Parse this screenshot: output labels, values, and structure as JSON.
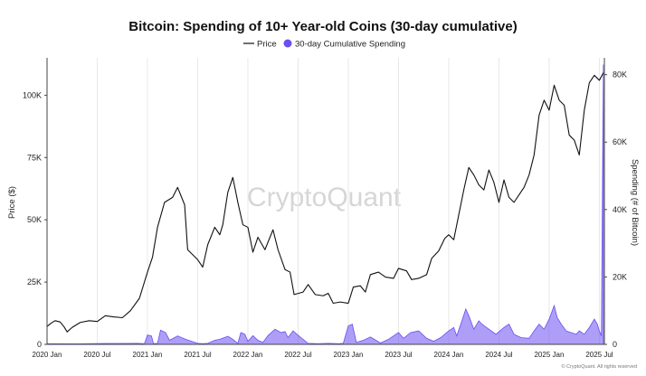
{
  "chart_data": {
    "type": "line",
    "title": "Bitcoin: Spending of 10+ Year-old Coins (30-day cumulative)",
    "legend": {
      "placement": "top-center",
      "entries": [
        {
          "label": "Price",
          "symbol": "line",
          "color": "#111111"
        },
        {
          "label": "30-day Cumulative Spending",
          "symbol": "circle",
          "color": "#6b4ff0"
        }
      ]
    },
    "watermark": "CryptoQuant",
    "footer": "© CryptoQuant. All rights reserved",
    "ylabel_left": "Price ($)",
    "ylabel_right": "Spending (# of Bitcoin)",
    "ylim_left": [
      0,
      115000
    ],
    "ylim_right": [
      0,
      85000
    ],
    "y_ticks_left": [
      "0",
      "25K",
      "50K",
      "75K",
      "100K"
    ],
    "y_ticks_left_values": [
      0,
      25000,
      50000,
      75000,
      100000
    ],
    "y_ticks_right": [
      "0",
      "20K",
      "40K",
      "60K",
      "80K"
    ],
    "y_ticks_right_values": [
      0,
      20000,
      40000,
      60000,
      80000
    ],
    "x_ticks": [
      "2020 Jan",
      "2020 Jul",
      "2021 Jan",
      "2021 Jul",
      "2022 Jan",
      "2022 Jul",
      "2023 Jan",
      "2023 Jul",
      "2024 Jan",
      "2024 Jul",
      "2025 Jan",
      "2025 Jul"
    ],
    "x_tick_values": [
      2020.0,
      2020.5,
      2021.0,
      2021.5,
      2022.0,
      2022.5,
      2023.0,
      2023.5,
      2024.0,
      2024.5,
      2025.0,
      2025.5
    ],
    "xlim": [
      2020.0,
      2025.55
    ],
    "grid": "x-vertical",
    "series": [
      {
        "name": "Price",
        "axis": "left",
        "type": "line",
        "color": "#111111",
        "points": [
          [
            2020.0,
            7200
          ],
          [
            2020.04,
            8500
          ],
          [
            2020.08,
            9500
          ],
          [
            2020.13,
            9000
          ],
          [
            2020.17,
            7000
          ],
          [
            2020.2,
            5000
          ],
          [
            2020.25,
            6800
          ],
          [
            2020.33,
            8800
          ],
          [
            2020.42,
            9500
          ],
          [
            2020.5,
            9200
          ],
          [
            2020.58,
            11500
          ],
          [
            2020.67,
            11000
          ],
          [
            2020.75,
            10700
          ],
          [
            2020.83,
            13500
          ],
          [
            2020.92,
            18500
          ],
          [
            2021.0,
            29000
          ],
          [
            2021.05,
            35000
          ],
          [
            2021.1,
            47000
          ],
          [
            2021.17,
            57000
          ],
          [
            2021.25,
            59000
          ],
          [
            2021.3,
            63000
          ],
          [
            2021.37,
            56000
          ],
          [
            2021.4,
            38000
          ],
          [
            2021.45,
            36000
          ],
          [
            2021.5,
            34000
          ],
          [
            2021.55,
            31000
          ],
          [
            2021.6,
            40000
          ],
          [
            2021.67,
            47000
          ],
          [
            2021.72,
            44000
          ],
          [
            2021.75,
            48000
          ],
          [
            2021.8,
            61000
          ],
          [
            2021.85,
            67000
          ],
          [
            2021.9,
            57000
          ],
          [
            2021.95,
            48000
          ],
          [
            2022.0,
            47000
          ],
          [
            2022.05,
            37000
          ],
          [
            2022.1,
            43000
          ],
          [
            2022.17,
            38000
          ],
          [
            2022.25,
            46000
          ],
          [
            2022.3,
            38000
          ],
          [
            2022.37,
            30000
          ],
          [
            2022.42,
            29000
          ],
          [
            2022.46,
            20000
          ],
          [
            2022.55,
            21000
          ],
          [
            2022.6,
            24000
          ],
          [
            2022.67,
            20000
          ],
          [
            2022.75,
            19500
          ],
          [
            2022.8,
            20500
          ],
          [
            2022.85,
            16500
          ],
          [
            2022.92,
            17000
          ],
          [
            2023.0,
            16500
          ],
          [
            2023.05,
            23000
          ],
          [
            2023.12,
            23500
          ],
          [
            2023.17,
            21000
          ],
          [
            2023.22,
            28000
          ],
          [
            2023.3,
            29000
          ],
          [
            2023.37,
            27000
          ],
          [
            2023.45,
            26500
          ],
          [
            2023.5,
            30500
          ],
          [
            2023.58,
            29500
          ],
          [
            2023.63,
            26000
          ],
          [
            2023.7,
            26500
          ],
          [
            2023.78,
            28000
          ],
          [
            2023.83,
            34500
          ],
          [
            2023.9,
            37500
          ],
          [
            2023.96,
            42500
          ],
          [
            2024.0,
            44000
          ],
          [
            2024.05,
            42000
          ],
          [
            2024.1,
            52000
          ],
          [
            2024.15,
            62000
          ],
          [
            2024.2,
            71000
          ],
          [
            2024.25,
            68000
          ],
          [
            2024.3,
            64000
          ],
          [
            2024.35,
            62000
          ],
          [
            2024.4,
            70000
          ],
          [
            2024.45,
            65000
          ],
          [
            2024.5,
            57000
          ],
          [
            2024.55,
            66000
          ],
          [
            2024.6,
            59000
          ],
          [
            2024.65,
            57000
          ],
          [
            2024.7,
            60000
          ],
          [
            2024.75,
            63000
          ],
          [
            2024.8,
            68000
          ],
          [
            2024.85,
            76000
          ],
          [
            2024.9,
            92000
          ],
          [
            2024.95,
            98000
          ],
          [
            2025.0,
            94000
          ],
          [
            2025.05,
            104000
          ],
          [
            2025.1,
            98000
          ],
          [
            2025.15,
            96000
          ],
          [
            2025.2,
            84000
          ],
          [
            2025.25,
            82000
          ],
          [
            2025.3,
            76000
          ],
          [
            2025.35,
            94000
          ],
          [
            2025.4,
            105000
          ],
          [
            2025.45,
            108000
          ],
          [
            2025.5,
            106000
          ],
          [
            2025.54,
            109000
          ]
        ]
      },
      {
        "name": "30-day Cumulative Spending",
        "axis": "right",
        "type": "area",
        "color": "#6b4ff0",
        "points": [
          [
            2020.0,
            200
          ],
          [
            2020.3,
            150
          ],
          [
            2020.6,
            250
          ],
          [
            2020.9,
            300
          ],
          [
            2020.97,
            200
          ],
          [
            2021.0,
            2800
          ],
          [
            2021.04,
            2500
          ],
          [
            2021.06,
            200
          ],
          [
            2021.1,
            300
          ],
          [
            2021.13,
            4200
          ],
          [
            2021.18,
            3500
          ],
          [
            2021.22,
            1200
          ],
          [
            2021.3,
            2500
          ],
          [
            2021.38,
            1500
          ],
          [
            2021.45,
            800
          ],
          [
            2021.5,
            300
          ],
          [
            2021.55,
            200
          ],
          [
            2021.6,
            300
          ],
          [
            2021.67,
            1200
          ],
          [
            2021.72,
            1500
          ],
          [
            2021.8,
            2400
          ],
          [
            2021.85,
            1500
          ],
          [
            2021.9,
            300
          ],
          [
            2021.93,
            3500
          ],
          [
            2021.97,
            3000
          ],
          [
            2022.0,
            900
          ],
          [
            2022.05,
            2600
          ],
          [
            2022.1,
            1200
          ],
          [
            2022.15,
            600
          ],
          [
            2022.2,
            2600
          ],
          [
            2022.27,
            4500
          ],
          [
            2022.33,
            3500
          ],
          [
            2022.37,
            3800
          ],
          [
            2022.4,
            2000
          ],
          [
            2022.45,
            4000
          ],
          [
            2022.52,
            2200
          ],
          [
            2022.6,
            300
          ],
          [
            2022.7,
            200
          ],
          [
            2022.8,
            300
          ],
          [
            2022.9,
            200
          ],
          [
            2022.95,
            300
          ],
          [
            2023.0,
            5500
          ],
          [
            2023.04,
            6000
          ],
          [
            2023.08,
            600
          ],
          [
            2023.15,
            1200
          ],
          [
            2023.22,
            2200
          ],
          [
            2023.27,
            1300
          ],
          [
            2023.32,
            400
          ],
          [
            2023.4,
            1500
          ],
          [
            2023.5,
            3500
          ],
          [
            2023.55,
            1800
          ],
          [
            2023.62,
            3500
          ],
          [
            2023.7,
            4000
          ],
          [
            2023.78,
            1800
          ],
          [
            2023.85,
            900
          ],
          [
            2023.92,
            2000
          ],
          [
            2024.0,
            4000
          ],
          [
            2024.05,
            5000
          ],
          [
            2024.08,
            2500
          ],
          [
            2024.12,
            6000
          ],
          [
            2024.17,
            10500
          ],
          [
            2024.2,
            8500
          ],
          [
            2024.25,
            4500
          ],
          [
            2024.3,
            7000
          ],
          [
            2024.33,
            6000
          ],
          [
            2024.4,
            4500
          ],
          [
            2024.47,
            3000
          ],
          [
            2024.55,
            5000
          ],
          [
            2024.6,
            6000
          ],
          [
            2024.65,
            3000
          ],
          [
            2024.72,
            2000
          ],
          [
            2024.8,
            1800
          ],
          [
            2024.85,
            4000
          ],
          [
            2024.9,
            6000
          ],
          [
            2024.95,
            4500
          ],
          [
            2025.0,
            7500
          ],
          [
            2025.05,
            11500
          ],
          [
            2025.08,
            8000
          ],
          [
            2025.12,
            6000
          ],
          [
            2025.17,
            4000
          ],
          [
            2025.22,
            3500
          ],
          [
            2025.27,
            3000
          ],
          [
            2025.3,
            4000
          ],
          [
            2025.35,
            3000
          ],
          [
            2025.4,
            5000
          ],
          [
            2025.45,
            7500
          ],
          [
            2025.48,
            6000
          ],
          [
            2025.5,
            4000
          ],
          [
            2025.52,
            2500
          ],
          [
            2025.54,
            83000
          ]
        ]
      }
    ]
  }
}
